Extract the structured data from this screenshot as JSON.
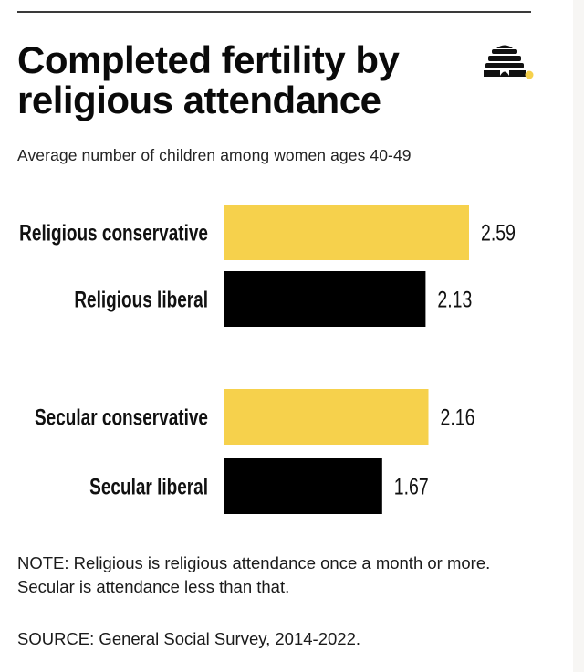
{
  "header": {
    "title": "Completed fertility by religious attendance",
    "subtitle": "Average number of children among women ages 40-49",
    "logo_icon": "beehive-icon"
  },
  "colors": {
    "conservative": "#f6d14c",
    "liberal": "#000000",
    "logo_dot": "#f6d14c",
    "rule": "#3a3a3a"
  },
  "chart_data": {
    "type": "bar",
    "orientation": "horizontal",
    "title": "Completed fertility by religious attendance",
    "subtitle": "Average number of children among women ages 40-49",
    "xlabel": "",
    "ylabel": "",
    "xlim": [
      0,
      2.59
    ],
    "grid": false,
    "groups": [
      {
        "name": "Religious",
        "bars": [
          {
            "category": "Religious conservative",
            "value": 2.59,
            "label": "2.59",
            "series": "conservative"
          },
          {
            "category": "Religious liberal",
            "value": 2.13,
            "label": "2.13",
            "series": "liberal"
          }
        ]
      },
      {
        "name": "Secular",
        "bars": [
          {
            "category": "Secular conservative",
            "value": 2.16,
            "label": "2.16",
            "series": "conservative"
          },
          {
            "category": "Secular liberal",
            "value": 1.67,
            "label": "1.67",
            "series": "liberal"
          }
        ]
      }
    ],
    "categories": [
      "Religious conservative",
      "Religious liberal",
      "Secular conservative",
      "Secular liberal"
    ],
    "values": [
      2.59,
      2.13,
      2.16,
      1.67
    ]
  },
  "footer": {
    "note": "NOTE: Religious is religious attendance once a month or more. Secular is attendance less than that.",
    "source": "SOURCE: General Social Survey, 2014-2022."
  }
}
